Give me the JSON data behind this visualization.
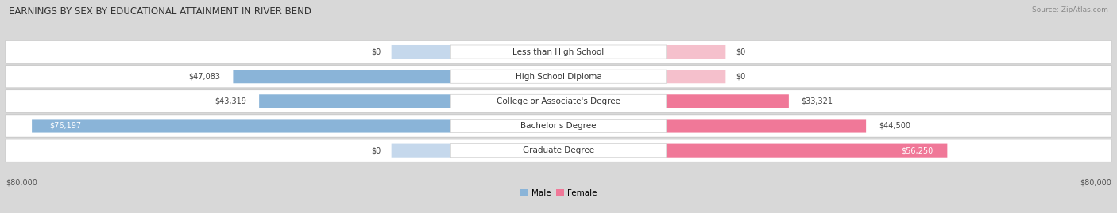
{
  "title": "EARNINGS BY SEX BY EDUCATIONAL ATTAINMENT IN RIVER BEND",
  "source": "Source: ZipAtlas.com",
  "categories": [
    "Less than High School",
    "High School Diploma",
    "College or Associate's Degree",
    "Bachelor's Degree",
    "Graduate Degree"
  ],
  "male_values": [
    0,
    47083,
    43319,
    76197,
    0
  ],
  "female_values": [
    0,
    0,
    33321,
    44500,
    56250
  ],
  "male_labels": [
    "$0",
    "$47,083",
    "$43,319",
    "$76,197",
    "$0"
  ],
  "female_labels": [
    "$0",
    "$0",
    "$33,321",
    "$44,500",
    "$56,250"
  ],
  "male_color": "#8ab4d8",
  "female_color": "#f07898",
  "male_color_light": "#c5d8ec",
  "female_color_light": "#f5c0cc",
  "axis_max": 80000,
  "axis_label_left": "$80,000",
  "axis_label_right": "$80,000",
  "background_color": "#d8d8d8",
  "row_bg_color": "#f2f2f2",
  "title_fontsize": 8.5,
  "category_fontsize": 7.5,
  "value_fontsize": 7.0,
  "source_fontsize": 6.5
}
